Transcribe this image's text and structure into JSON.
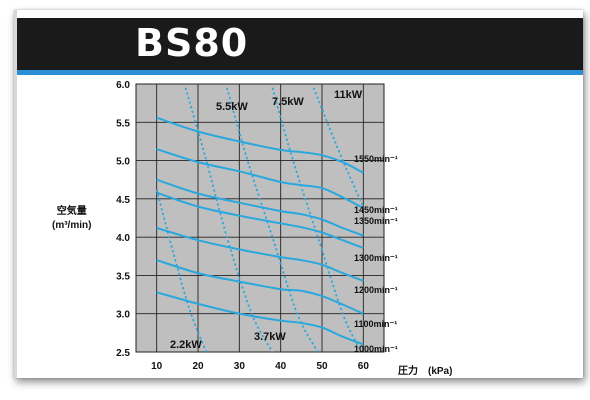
{
  "header": {
    "title": "BS80"
  },
  "chart_data": {
    "type": "line",
    "title": "BS80",
    "xlabel": "圧力　(kPa)",
    "ylabel_line1": "空気量",
    "ylabel_line2": "(m³/min)",
    "xlim": [
      5,
      65
    ],
    "ylim": [
      2.5,
      6.0
    ],
    "x_ticks": [
      "10",
      "20",
      "30",
      "40",
      "50",
      "60"
    ],
    "y_ticks": [
      "2.5",
      "3.0",
      "3.5",
      "4.0",
      "4.5",
      "5.0",
      "5.5",
      "6.0"
    ],
    "grid": true,
    "colors": {
      "speed": "#2aa8dd",
      "power": "#2aa8dd",
      "plot_bg": "#bfbfbf",
      "grid": "#222222"
    },
    "speed_series": [
      {
        "name": "1550min⁻¹",
        "points": [
          [
            10,
            5.56
          ],
          [
            20,
            5.38
          ],
          [
            30,
            5.25
          ],
          [
            40,
            5.14
          ],
          [
            45,
            5.11
          ],
          [
            50,
            5.07
          ],
          [
            55,
            4.98
          ],
          [
            60,
            4.84
          ]
        ]
      },
      {
        "name": "1450min⁻¹",
        "points": [
          [
            10,
            5.15
          ],
          [
            20,
            4.98
          ],
          [
            30,
            4.86
          ],
          [
            40,
            4.72
          ],
          [
            45,
            4.68
          ],
          [
            50,
            4.64
          ],
          [
            55,
            4.52
          ],
          [
            60,
            4.38
          ]
        ]
      },
      {
        "name": "1350min⁻¹",
        "points": [
          [
            10,
            4.75
          ],
          [
            20,
            4.57
          ],
          [
            30,
            4.45
          ],
          [
            40,
            4.34
          ],
          [
            45,
            4.3
          ],
          [
            50,
            4.23
          ],
          [
            55,
            4.12
          ],
          [
            60,
            4.02
          ]
        ]
      },
      {
        "name": "",
        "points": [
          [
            10,
            4.58
          ],
          [
            20,
            4.4
          ],
          [
            30,
            4.28
          ],
          [
            40,
            4.18
          ],
          [
            45,
            4.13
          ],
          [
            50,
            4.06
          ],
          [
            55,
            3.96
          ],
          [
            60,
            3.86
          ]
        ]
      },
      {
        "name": "1300min⁻¹",
        "points": [
          [
            10,
            4.12
          ],
          [
            20,
            3.96
          ],
          [
            30,
            3.84
          ],
          [
            40,
            3.74
          ],
          [
            45,
            3.7
          ],
          [
            50,
            3.64
          ],
          [
            55,
            3.53
          ],
          [
            60,
            3.43
          ]
        ]
      },
      {
        "name": "1200min⁻¹",
        "points": [
          [
            10,
            3.7
          ],
          [
            20,
            3.53
          ],
          [
            30,
            3.42
          ],
          [
            40,
            3.32
          ],
          [
            45,
            3.3
          ],
          [
            50,
            3.23
          ],
          [
            55,
            3.12
          ],
          [
            60,
            3.0
          ]
        ]
      },
      {
        "name": "1100min⁻¹",
        "points": [
          [
            10,
            3.28
          ],
          [
            20,
            3.13
          ],
          [
            30,
            3.0
          ],
          [
            40,
            2.91
          ],
          [
            45,
            2.88
          ],
          [
            50,
            2.82
          ],
          [
            55,
            2.7
          ],
          [
            60,
            2.6
          ]
        ]
      },
      {
        "name": "1000min⁻¹",
        "points": []
      }
    ],
    "power_lines": [
      {
        "name": "2.2kW",
        "points": [
          [
            10,
            4.62
          ],
          [
            14,
            3.8
          ],
          [
            18,
            3.05
          ],
          [
            22,
            2.5
          ]
        ]
      },
      {
        "name": "3.7kW",
        "points": [
          [
            17,
            5.95
          ],
          [
            22,
            5.0
          ],
          [
            27,
            4.0
          ],
          [
            33,
            3.0
          ],
          [
            38,
            2.5
          ]
        ]
      },
      {
        "name": "5.5kW",
        "points": [
          [
            27,
            5.95
          ],
          [
            32,
            5.0
          ],
          [
            38,
            4.0
          ],
          [
            44,
            3.0
          ],
          [
            49,
            2.5
          ]
        ]
      },
      {
        "name": "7.5kW",
        "points": [
          [
            38,
            5.95
          ],
          [
            43,
            5.0
          ],
          [
            49,
            4.0
          ],
          [
            55,
            3.0
          ],
          [
            59,
            2.55
          ]
        ]
      },
      {
        "name": "11kW",
        "points": [
          [
            48,
            5.95
          ],
          [
            52,
            5.4
          ],
          [
            56,
            4.88
          ],
          [
            60,
            4.4
          ]
        ]
      }
    ]
  }
}
